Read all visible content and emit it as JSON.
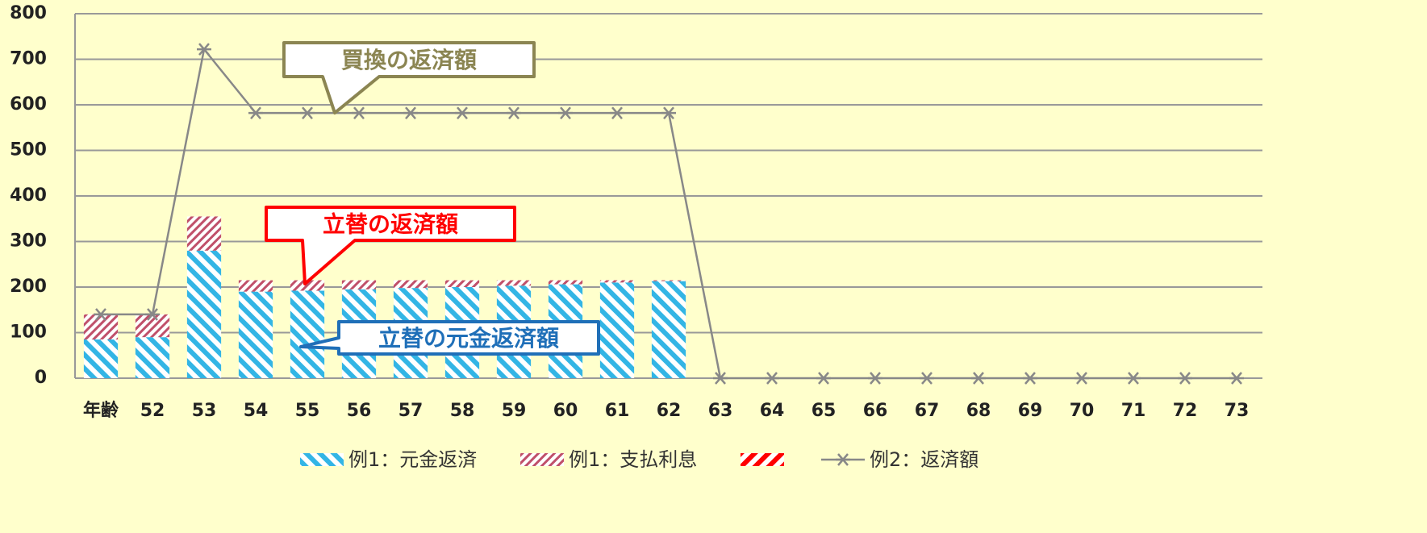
{
  "chart_data": {
    "type": "bar+line",
    "categories": [
      "年齢",
      "52",
      "53",
      "54",
      "55",
      "56",
      "57",
      "58",
      "59",
      "60",
      "61",
      "62",
      "63",
      "64",
      "65",
      "66",
      "67",
      "68",
      "69",
      "70",
      "71",
      "72",
      "73"
    ],
    "series": [
      {
        "name": "例1：元金返済",
        "color": "#33b5e5",
        "kind": "bar",
        "pattern": "back",
        "values": [
          85,
          90,
          280,
          190,
          192,
          195,
          198,
          200,
          203,
          206,
          210,
          213,
          null,
          null,
          null,
          null,
          null,
          null,
          null,
          null,
          null,
          null,
          null
        ]
      },
      {
        "name": "例1：支払利息",
        "color": "#c0506a",
        "kind": "bar",
        "pattern": "fwd",
        "values": [
          55,
          50,
          75,
          25,
          23,
          20,
          17,
          15,
          12,
          9,
          5,
          2,
          null,
          null,
          null,
          null,
          null,
          null,
          null,
          null,
          null,
          null,
          null
        ]
      },
      {
        "color": "#ff0000",
        "kind": "bar",
        "pattern": "bold",
        "values": [
          null,
          null,
          null,
          null,
          null,
          null,
          null,
          null,
          null,
          null,
          null,
          null,
          null,
          null,
          null,
          null,
          null,
          null,
          null,
          null,
          null,
          null,
          null
        ]
      },
      {
        "name": "例2：返済額",
        "color": "#888888",
        "kind": "line",
        "values": [
          140,
          140,
          722,
          582,
          582,
          582,
          582,
          582,
          582,
          582,
          582,
          582,
          0,
          0,
          0,
          0,
          0,
          0,
          0,
          0,
          0,
          0,
          0
        ]
      }
    ],
    "annotations": [
      {
        "text": "買換の返済額",
        "color": "#8b8552"
      },
      {
        "text": "立替の返済額",
        "color": "#ff0000"
      },
      {
        "text": "立替の元金返済額",
        "color": "#1f6fb8"
      }
    ],
    "ylim": [
      0,
      800
    ],
    "yticks": [
      0,
      100,
      200,
      300,
      400,
      500,
      600,
      700,
      800
    ],
    "grid": true
  }
}
